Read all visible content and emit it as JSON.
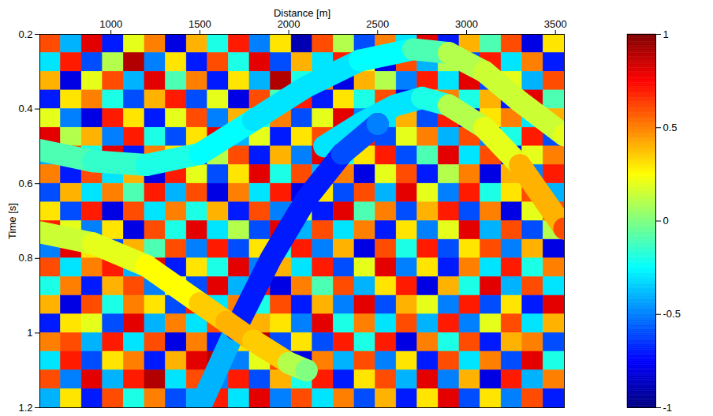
{
  "chart_data": {
    "type": "heatmap",
    "xlabel": "Distance [m]",
    "ylabel": "Time [s]",
    "xlim": [
      600,
      3550
    ],
    "ylim": [
      0.2,
      1.2
    ],
    "xticks": [
      1000,
      1500,
      2000,
      2500,
      3000,
      3500
    ],
    "yticks": [
      0.2,
      0.4,
      0.6,
      0.8,
      1,
      1.2
    ],
    "cells": {
      "x": [
        600,
        718,
        836,
        954,
        1072,
        1190,
        1308,
        1426,
        1544,
        1662,
        1780,
        1898,
        2016,
        2134,
        2252,
        2370,
        2488,
        2606,
        2724,
        2842,
        2960,
        3078,
        3196,
        3314,
        3432,
        3550
      ],
      "y": [
        0.2,
        0.25,
        0.3,
        0.35,
        0.4,
        0.45,
        0.5,
        0.55,
        0.6,
        0.65,
        0.7,
        0.75,
        0.8,
        0.85,
        0.9,
        0.95,
        1,
        1.05,
        1.1,
        1.15,
        1.2
      ],
      "values": [
        [
          0.6,
          -0.4,
          0.8,
          -0.7,
          0.2,
          0.5,
          -0.8,
          0.4,
          -0.2,
          0.7,
          -0.5,
          0.3,
          -0.9,
          0.6,
          0.1,
          -0.6,
          0.5,
          -0.3,
          0.8,
          -0.7,
          0.4,
          -0.1,
          0.6,
          -0.8,
          0.3
        ],
        [
          -0.3,
          0.7,
          -0.6,
          0.1,
          0.9,
          -0.5,
          0.3,
          -0.7,
          0.6,
          -0.2,
          0.8,
          -0.6,
          0.4,
          -0.3,
          0.7,
          0.2,
          -0.8,
          0.6,
          -0.4,
          0.1,
          -0.6,
          0.7,
          -0.3,
          0.5,
          -0.7
        ],
        [
          0.4,
          -0.8,
          0.2,
          0.6,
          -0.4,
          0.8,
          -0.1,
          0.5,
          -0.7,
          0.3,
          -0.4,
          0.9,
          -0.2,
          0.5,
          -0.8,
          0.4,
          0.1,
          -0.5,
          0.7,
          -0.3,
          0.8,
          -0.6,
          0.2,
          -0.4,
          0.6
        ],
        [
          -0.7,
          0.3,
          0.5,
          -0.2,
          -0.6,
          0.4,
          0.7,
          -0.6,
          0.2,
          -0.8,
          0.6,
          -0.1,
          0.7,
          -0.7,
          0.3,
          -0.2,
          0.6,
          -0.8,
          0.3,
          0.5,
          -0.2,
          0.4,
          -0.7,
          0.8,
          -0.1
        ],
        [
          0.2,
          -0.5,
          -0.8,
          0.7,
          0.3,
          -0.7,
          0.2,
          0.6,
          -0.5,
          0.4,
          -0.2,
          0.5,
          -0.6,
          0.2,
          0.8,
          -0.5,
          -0.3,
          0.4,
          -0.6,
          0.7,
          -0.8,
          0.3,
          0.5,
          -0.3,
          0.4
        ],
        [
          0.8,
          0.1,
          0.4,
          -0.5,
          0.7,
          -0.2,
          -0.6,
          0.3,
          0.8,
          -0.4,
          0.2,
          -0.7,
          0.3,
          0.6,
          -0.4,
          0.7,
          -0.6,
          0.2,
          0.5,
          -0.4,
          0.6,
          -0.5,
          -0.2,
          0.7,
          -0.6
        ],
        [
          -0.4,
          0.6,
          -0.2,
          0.8,
          -0.7,
          0.5,
          0.3,
          -0.8,
          0.1,
          0.6,
          -0.7,
          0.4,
          -0.5,
          0.8,
          -0.2,
          0.3,
          0.7,
          -0.6,
          -0.1,
          0.8,
          -0.3,
          0.6,
          -0.7,
          0.2,
          0.5
        ],
        [
          0.5,
          -0.7,
          0.6,
          -0.3,
          0.4,
          -0.8,
          0.7,
          0.2,
          -0.6,
          0.3,
          0.8,
          -0.2,
          0.6,
          -0.4,
          0.5,
          -0.8,
          0.2,
          0.6,
          -0.7,
          0.1,
          0.5,
          -0.8,
          0.4,
          -0.5,
          0.7
        ],
        [
          -0.6,
          0.4,
          -0.3,
          0.5,
          -0.1,
          0.7,
          -0.4,
          0.6,
          -0.8,
          0.5,
          -0.3,
          0.7,
          -0.8,
          0.3,
          -0.6,
          0.6,
          -0.4,
          0.8,
          0.2,
          -0.5,
          0.7,
          -0.2,
          0.3,
          0.6,
          -0.4
        ],
        [
          0.3,
          -0.6,
          0.7,
          -0.8,
          0.6,
          -0.3,
          0.5,
          -0.2,
          0.4,
          -0.7,
          0.6,
          -0.5,
          0.2,
          -0.7,
          0.8,
          -0.1,
          0.5,
          -0.6,
          0.4,
          0.7,
          -0.6,
          0.5,
          -0.8,
          0.2,
          0.6
        ],
        [
          0.7,
          0.2,
          -0.5,
          0.3,
          -0.8,
          0.6,
          -0.2,
          0.8,
          -0.3,
          0.1,
          -0.6,
          0.8,
          -0.4,
          0.6,
          -0.3,
          0.5,
          -0.7,
          0.3,
          -0.5,
          0.2,
          0.8,
          -0.4,
          0.6,
          -0.6,
          0.1
        ],
        [
          -0.5,
          0.8,
          0.3,
          -0.6,
          0.4,
          -0.1,
          0.6,
          -0.5,
          0.7,
          -0.6,
          0.3,
          -0.2,
          0.7,
          -0.5,
          0.4,
          -0.8,
          0.6,
          -0.2,
          0.7,
          -0.6,
          0.3,
          0.6,
          -0.5,
          0.4,
          -0.8
        ],
        [
          0.6,
          -0.3,
          0.5,
          0.7,
          -0.4,
          0.8,
          -0.7,
          0.3,
          -0.2,
          0.8,
          -0.5,
          0.4,
          -0.3,
          0.7,
          -0.6,
          0.2,
          0.8,
          -0.5,
          0.3,
          -0.7,
          0.5,
          -0.3,
          0.7,
          -0.2,
          0.5
        ],
        [
          -0.2,
          0.5,
          -0.7,
          0.4,
          0.6,
          -0.5,
          0.2,
          -0.6,
          0.8,
          -0.4,
          0.7,
          -0.8,
          0.5,
          -0.1,
          0.6,
          -0.4,
          0.3,
          0.7,
          -0.8,
          0.4,
          -0.2,
          0.8,
          -0.4,
          0.6,
          -0.3
        ],
        [
          0.4,
          -0.8,
          0.6,
          -0.2,
          0.5,
          0.3,
          -0.6,
          0.7,
          -0.3,
          0.5,
          -0.2,
          0.6,
          -0.7,
          0.4,
          -0.5,
          0.8,
          -0.6,
          0.4,
          0.2,
          -0.5,
          0.7,
          -0.6,
          0.3,
          -0.7,
          0.8
        ],
        [
          -0.7,
          0.3,
          0.2,
          -0.6,
          0.8,
          -0.4,
          0.5,
          -0.3,
          0.6,
          -0.8,
          0.4,
          0.3,
          -0.5,
          0.8,
          -0.2,
          0.5,
          -0.3,
          0.6,
          -0.4,
          0.7,
          -0.5,
          0.2,
          0.6,
          -0.3,
          0.4
        ],
        [
          0.5,
          0.6,
          -0.4,
          0.7,
          -0.3,
          0.6,
          -0.8,
          0.5,
          -0.7,
          0.3,
          0.9,
          -0.6,
          0.3,
          -0.6,
          0.7,
          -0.2,
          0.7,
          -0.8,
          0.5,
          -0.2,
          0.6,
          -0.7,
          0.4,
          0.5,
          -0.6
        ],
        [
          -0.3,
          0.7,
          -0.6,
          0.3,
          0.5,
          -0.7,
          0.4,
          0.8,
          0.9,
          -0.5,
          0.2,
          0.6,
          -0.8,
          0.5,
          -0.4,
          0.6,
          -0.5,
          0.3,
          -0.7,
          0.6,
          -0.3,
          0.5,
          -0.6,
          0.8,
          -0.2
        ],
        [
          0.6,
          -0.5,
          0.8,
          -0.4,
          0.7,
          0.9,
          -0.3,
          0.6,
          -0.5,
          0.7,
          -0.6,
          0.4,
          -0.2,
          0.7,
          -0.7,
          0.3,
          0.6,
          -0.4,
          0.8,
          -0.5,
          0.4,
          -0.8,
          0.7,
          -0.4,
          0.5
        ],
        [
          -0.4,
          0.3,
          -0.7,
          0.6,
          -0.2,
          0.5,
          -0.6,
          -0.4,
          0.7,
          -0.3,
          0.8,
          -0.5,
          0.6,
          -0.3,
          0.5,
          -0.6,
          0.4,
          -0.7,
          0.3,
          0.8,
          -0.6,
          0.3,
          -0.5,
          0.6,
          -0.7
        ]
      ]
    },
    "events": [
      {
        "x": [
          600,
          900,
          1200,
          1500,
          1800,
          2100,
          2400,
          2700,
          2900,
          3100,
          3300,
          3550
        ],
        "y": [
          0.51,
          0.54,
          0.55,
          0.52,
          0.43,
          0.34,
          0.27,
          0.24,
          0.25,
          0.3,
          0.38,
          0.47
        ],
        "values": [
          -0.1,
          -0.15,
          -0.2,
          -0.25,
          -0.3,
          -0.3,
          -0.25,
          -0.1,
          0.1,
          0.15,
          0.15,
          0.2
        ]
      },
      {
        "x": [
          2200,
          2400,
          2600,
          2750,
          2900,
          3100,
          3300,
          3550
        ],
        "y": [
          0.5,
          0.44,
          0.39,
          0.37,
          0.39,
          0.45,
          0.55,
          0.72
        ],
        "values": [
          -0.3,
          -0.3,
          -0.3,
          -0.2,
          0.1,
          0.2,
          0.4,
          0.6
        ]
      },
      {
        "x": [
          1500,
          1700,
          1900,
          2100,
          2300,
          2500
        ],
        "y": [
          1.2,
          0.99,
          0.8,
          0.64,
          0.52,
          0.44
        ],
        "values": [
          -0.4,
          -0.7,
          -0.7,
          -0.7,
          -0.6,
          -0.5
        ]
      },
      {
        "x": [
          600,
          900,
          1200,
          1500,
          1650,
          1800,
          2000,
          2100
        ],
        "y": [
          0.73,
          0.76,
          0.82,
          0.92,
          0.97,
          1.02,
          1.08,
          1.1
        ],
        "values": [
          0.15,
          0.2,
          0.25,
          0.35,
          0.4,
          0.35,
          0.1,
          0
        ]
      }
    ],
    "colorbar": {
      "range": [
        -1,
        1
      ],
      "ticks": [
        -1,
        -0.5,
        0,
        0.5,
        1
      ]
    }
  }
}
